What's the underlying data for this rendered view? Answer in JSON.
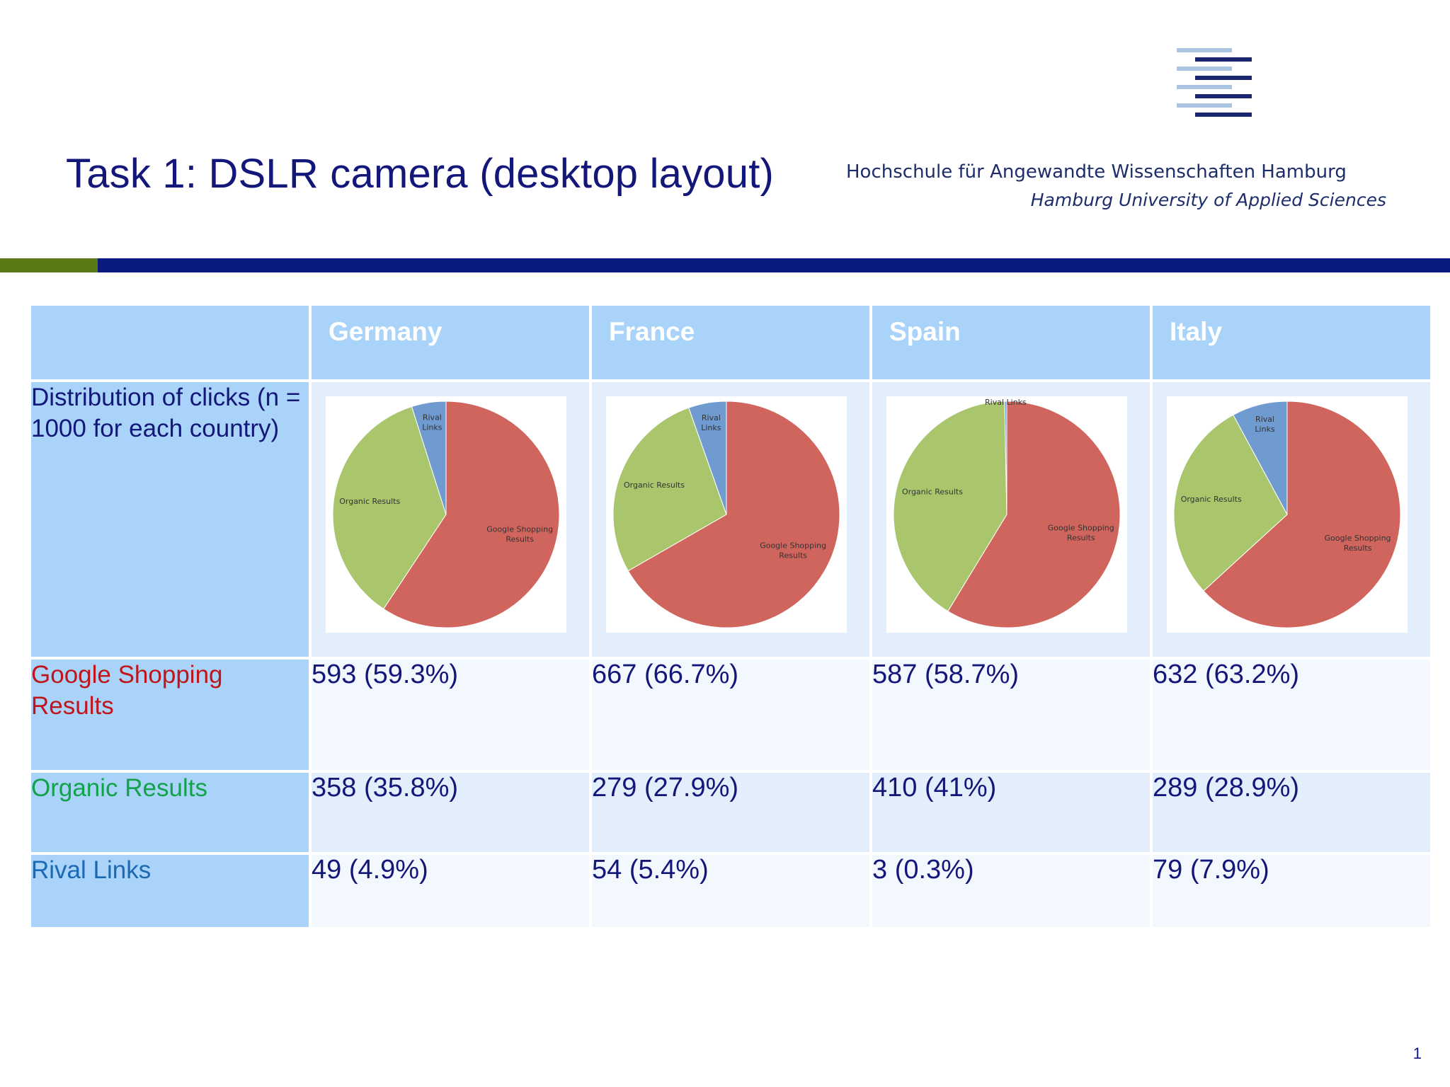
{
  "slide": {
    "title": "Task 1: DSLR camera (desktop layout)",
    "institution_de": "Hochschule für Angewandte Wissenschaften Hamburg",
    "institution_en": "Hamburg University of Applied Sciences",
    "page_number": "1"
  },
  "colors": {
    "title": "#14177a",
    "google_shopping": "#d0655e",
    "organic": "#a9c66c",
    "rival": "#6f9bd1",
    "header_bg": "#a9d3f8",
    "rule_green": "#5a7a15",
    "rule_blue": "#0a1a80"
  },
  "chart_data": {
    "type": "table",
    "columns": [
      "Germany",
      "France",
      "Spain",
      "Italy"
    ],
    "row_headers": {
      "distribution": "Distribution of clicks (n = 1000 for each country)",
      "google_shopping": "Google Shopping Results",
      "organic": "Organic Results",
      "rival": "Rival Links"
    },
    "cells": {
      "google_shopping": [
        "593 (59.3%)",
        "667 (66.7%)",
        "587 (58.7%)",
        "632 (63.2%)"
      ],
      "organic": [
        "358 (35.8%)",
        "279 (27.9%)",
        "410 (41%)",
        "289 (28.9%)"
      ],
      "rival": [
        "49 (4.9%)",
        "54 (5.4%)",
        "3 (0.3%)",
        "79 (7.9%)"
      ]
    },
    "pies": [
      {
        "type": "pie",
        "country": "Germany",
        "slice_labels": [
          "Google Shopping Results",
          "Organic Results",
          "Rival Links"
        ],
        "values": [
          593,
          358,
          49
        ]
      },
      {
        "type": "pie",
        "country": "France",
        "slice_labels": [
          "Google Shopping Results",
          "Organic Results",
          "Rival Links"
        ],
        "values": [
          667,
          279,
          54
        ]
      },
      {
        "type": "pie",
        "country": "Spain",
        "slice_labels": [
          "Google Shopping Results",
          "Organic Results",
          "Rival Links"
        ],
        "values": [
          587,
          410,
          3
        ]
      },
      {
        "type": "pie",
        "country": "Italy",
        "slice_labels": [
          "Google Shopping Results",
          "Organic Results",
          "Rival Links"
        ],
        "values": [
          632,
          289,
          79
        ]
      }
    ]
  }
}
